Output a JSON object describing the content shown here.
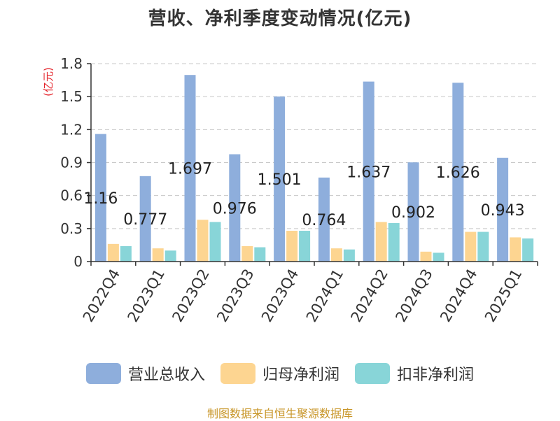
{
  "title": "营收、净利季度变动情况(亿元)",
  "source": "制图数据来自恒生聚源数据库",
  "colors": {
    "revenue": "#8eaedc",
    "net_profit": "#fdd591",
    "deducted_profit": "#88d5d8",
    "unit": "#e4252c"
  },
  "chart_data": {
    "type": "bar",
    "ylabel": "(亿元)",
    "ylim": [
      0,
      1.8
    ],
    "yticks": [
      "0",
      "0.3",
      "0.6",
      "0.9",
      "1.2",
      "1.5",
      "1.8"
    ],
    "grid": true,
    "legend_position": "bottom",
    "categories": [
      "2022Q4",
      "2023Q1",
      "2023Q2",
      "2023Q3",
      "2023Q4",
      "2024Q1",
      "2024Q2",
      "2024Q3",
      "2024Q4",
      "2025Q1"
    ],
    "series": [
      {
        "name": "营业总收入",
        "values": [
          1.16,
          0.777,
          1.697,
          0.976,
          1.501,
          0.764,
          1.637,
          0.902,
          1.626,
          0.943
        ],
        "labels": [
          "1.16",
          "0.777",
          "1.697",
          "0.976",
          "1.501",
          "0.764",
          "1.637",
          "0.902",
          "1.626",
          "0.943"
        ]
      },
      {
        "name": "归母净利润",
        "values": [
          0.16,
          0.12,
          0.38,
          0.14,
          0.28,
          0.12,
          0.36,
          0.09,
          0.27,
          0.22
        ]
      },
      {
        "name": "扣非净利润",
        "values": [
          0.14,
          0.1,
          0.36,
          0.13,
          0.28,
          0.11,
          0.35,
          0.08,
          0.27,
          0.21
        ]
      }
    ]
  }
}
